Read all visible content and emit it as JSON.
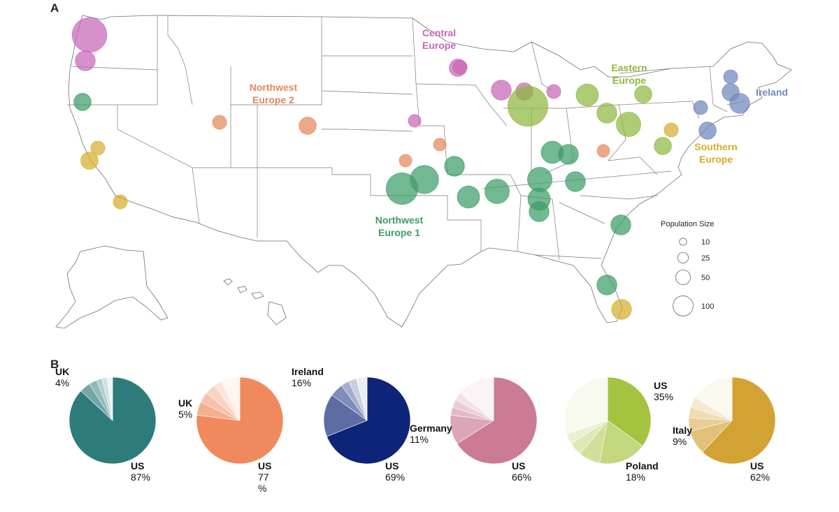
{
  "panels": {
    "map_letter": "A",
    "pies_letter": "B"
  },
  "regions": [
    {
      "key": "central",
      "label_lines": [
        "Central",
        "Europe"
      ],
      "color": "#c766b6"
    },
    {
      "key": "eastern",
      "label_lines": [
        "Eastern",
        "Europe"
      ],
      "color": "#8db83d"
    },
    {
      "key": "ireland",
      "label_lines": [
        "Ireland"
      ],
      "color": "#6f87bd"
    },
    {
      "key": "nw2",
      "label_lines": [
        "Northwest",
        "Europe 2"
      ],
      "color": "#e3885b"
    },
    {
      "key": "southern",
      "label_lines": [
        "Southern",
        "Europe"
      ],
      "color": "#d4ad2c"
    },
    {
      "key": "nw1",
      "label_lines": [
        "Northwest",
        "Europe 1"
      ],
      "color": "#3c9c66"
    }
  ],
  "legend": {
    "title": "Population Size",
    "sizes": [
      {
        "value": 10,
        "label": "10"
      },
      {
        "value": 25,
        "label": "25"
      },
      {
        "value": 50,
        "label": "50"
      },
      {
        "value": 100,
        "label": "100"
      }
    ]
  },
  "markers": [
    {
      "region": "central",
      "size": 60
    },
    {
      "region": "central",
      "size": 20
    },
    {
      "region": "central",
      "size": 15
    },
    {
      "region": "central",
      "size": 20
    },
    {
      "region": "central",
      "size": 15
    },
    {
      "region": "central",
      "size": 10
    },
    {
      "region": "central",
      "size": 8
    },
    {
      "region": "central",
      "size": 10
    },
    {
      "region": "eastern",
      "size": 80
    },
    {
      "region": "eastern",
      "size": 25
    },
    {
      "region": "eastern",
      "size": 20
    },
    {
      "region": "eastern",
      "size": 15
    },
    {
      "region": "eastern",
      "size": 30
    },
    {
      "region": "eastern",
      "size": 15
    },
    {
      "region": "ireland",
      "size": 15
    },
    {
      "region": "ireland",
      "size": 20
    },
    {
      "region": "ireland",
      "size": 10
    },
    {
      "region": "ireland",
      "size": 15
    },
    {
      "region": "ireland",
      "size": 10
    },
    {
      "region": "southern",
      "size": 10
    },
    {
      "region": "southern",
      "size": 15
    },
    {
      "region": "southern",
      "size": 10
    },
    {
      "region": "southern",
      "size": 20
    },
    {
      "region": "southern",
      "size": 10
    },
    {
      "region": "nw2",
      "size": 10
    },
    {
      "region": "nw2",
      "size": 15
    },
    {
      "region": "nw2",
      "size": 8
    },
    {
      "region": "nw2",
      "size": 8
    },
    {
      "region": "nw2",
      "size": 8
    },
    {
      "region": "nw1",
      "size": 15
    },
    {
      "region": "nw1",
      "size": 50
    },
    {
      "region": "nw1",
      "size": 40
    },
    {
      "region": "nw1",
      "size": 20
    },
    {
      "region": "nw1",
      "size": 25
    },
    {
      "region": "nw1",
      "size": 30
    },
    {
      "region": "nw1",
      "size": 30
    },
    {
      "region": "nw1",
      "size": 25
    },
    {
      "region": "nw1",
      "size": 20
    },
    {
      "region": "nw1",
      "size": 25
    },
    {
      "region": "nw1",
      "size": 20
    },
    {
      "region": "nw1",
      "size": 20
    },
    {
      "region": "nw1",
      "size": 20
    },
    {
      "region": "nw1",
      "size": 20
    }
  ],
  "pies": [
    {
      "region": "nw1",
      "base_color": "#2e7b7b",
      "slices": [
        {
          "value": 87
        },
        {
          "value": 4
        },
        {
          "value": 3
        },
        {
          "value": 2
        },
        {
          "value": 2
        },
        {
          "value": 2
        }
      ],
      "labels": [
        {
          "lines": [
            "UK",
            "4%"
          ],
          "side": "top-left"
        },
        {
          "lines": [
            "US",
            "87%"
          ],
          "side": "bottom-right"
        }
      ]
    },
    {
      "region": "nw2",
      "base_color": "#f08a5d",
      "slices": [
        {
          "value": 77
        },
        {
          "value": 5
        },
        {
          "value": 4
        },
        {
          "value": 4
        },
        {
          "value": 3
        },
        {
          "value": 7
        }
      ],
      "labels": [
        {
          "lines": [
            "UK",
            "5%"
          ],
          "side": "left"
        },
        {
          "lines": [
            "US",
            "77",
            "%"
          ],
          "side": "bottom-right"
        }
      ]
    },
    {
      "region": "ireland",
      "base_color": "#0e2478",
      "slices": [
        {
          "value": 69
        },
        {
          "value": 16
        },
        {
          "value": 5
        },
        {
          "value": 3
        },
        {
          "value": 3
        },
        {
          "value": 4
        }
      ],
      "labels": [
        {
          "lines": [
            "Ireland",
            "16%"
          ],
          "side": "top-left"
        },
        {
          "lines": [
            "US",
            "69%"
          ],
          "side": "bottom-right"
        }
      ]
    },
    {
      "region": "central",
      "base_color": "#cc7b94",
      "slices": [
        {
          "value": 66
        },
        {
          "value": 11
        },
        {
          "value": 3
        },
        {
          "value": 3
        },
        {
          "value": 3
        },
        {
          "value": 14
        }
      ],
      "labels": [
        {
          "lines": [
            "Germany",
            "11%"
          ],
          "side": "left"
        },
        {
          "lines": [
            "US",
            "66%"
          ],
          "side": "bottom-right"
        }
      ]
    },
    {
      "region": "eastern",
      "base_color": "#a4c33f",
      "slices": [
        {
          "value": 35
        },
        {
          "value": 18
        },
        {
          "value": 8
        },
        {
          "value": 5
        },
        {
          "value": 4
        },
        {
          "value": 30
        }
      ],
      "labels": [
        {
          "lines": [
            "US",
            "35%"
          ],
          "side": "top-right"
        },
        {
          "lines": [
            "Poland",
            "18%"
          ],
          "side": "bottom-right"
        }
      ]
    },
    {
      "region": "southern",
      "base_color": "#d3a235",
      "slices": [
        {
          "value": 62
        },
        {
          "value": 9
        },
        {
          "value": 5
        },
        {
          "value": 4
        },
        {
          "value": 4
        },
        {
          "value": 16
        }
      ],
      "labels": [
        {
          "lines": [
            "Italy",
            "9%"
          ],
          "side": "left"
        },
        {
          "lines": [
            "US",
            "62%"
          ],
          "side": "bottom-right"
        }
      ]
    }
  ]
}
